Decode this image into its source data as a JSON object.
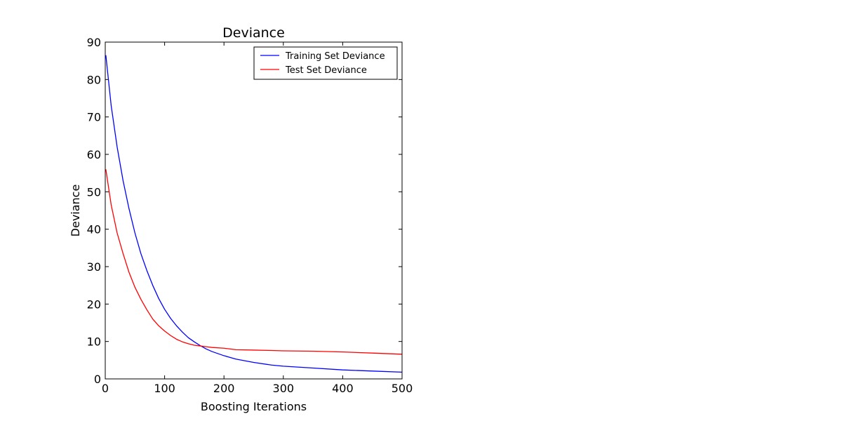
{
  "chart_data": {
    "type": "line",
    "title": "Deviance",
    "xlabel": "Boosting Iterations",
    "ylabel": "Deviance",
    "xlim": [
      0,
      500
    ],
    "ylim": [
      0,
      90
    ],
    "xticks": [
      0,
      100,
      200,
      300,
      400,
      500
    ],
    "yticks": [
      0,
      10,
      20,
      30,
      40,
      50,
      60,
      70,
      80,
      90
    ],
    "grid": false,
    "legend_position": "top-right",
    "series": [
      {
        "name": "Training Set Deviance",
        "color": "#0000ff",
        "x": [
          1,
          10,
          20,
          30,
          40,
          50,
          60,
          70,
          80,
          90,
          100,
          110,
          120,
          130,
          140,
          150,
          160,
          170,
          180,
          200,
          220,
          250,
          280,
          300,
          350,
          400,
          450,
          500
        ],
        "y": [
          86.5,
          73,
          62,
          53,
          45.5,
          39,
          33.5,
          29,
          25,
          21.5,
          18.6,
          16.2,
          14.2,
          12.5,
          11,
          9.9,
          8.9,
          8.0,
          7.3,
          6.2,
          5.3,
          4.4,
          3.7,
          3.4,
          2.9,
          2.4,
          2.1,
          1.8
        ]
      },
      {
        "name": "Test Set Deviance",
        "color": "#ff0000",
        "x": [
          1,
          10,
          20,
          30,
          40,
          50,
          60,
          70,
          80,
          90,
          100,
          110,
          120,
          130,
          140,
          150,
          160,
          170,
          180,
          200,
          220,
          250,
          280,
          300,
          350,
          400,
          450,
          500
        ],
        "y": [
          56,
          46.5,
          39,
          33.5,
          28.5,
          24.5,
          21.3,
          18.5,
          16,
          14.2,
          12.8,
          11.6,
          10.6,
          9.9,
          9.4,
          9.0,
          8.8,
          8.6,
          8.4,
          8.2,
          7.8,
          7.7,
          7.6,
          7.5,
          7.4,
          7.2,
          6.9,
          6.6
        ]
      }
    ]
  }
}
